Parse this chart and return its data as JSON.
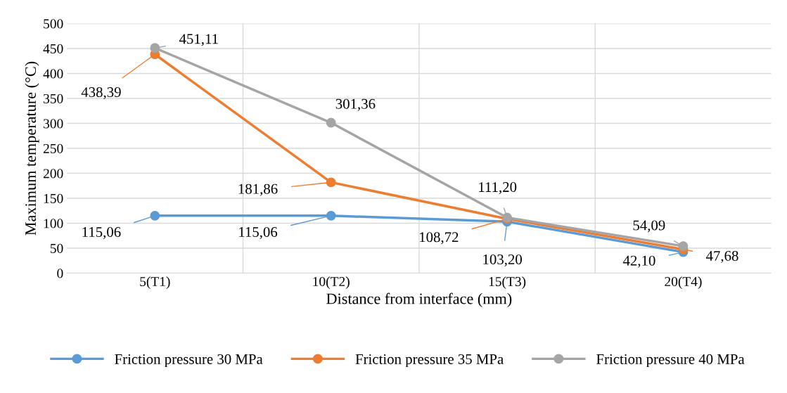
{
  "chart_data": {
    "type": "line",
    "xlabel": "Distance from interface (mm)",
    "ylabel": "Maximum temperature (°C)",
    "categories": [
      "5(T1)",
      "10(T2)",
      "15(T3)",
      "20(T4)"
    ],
    "series": [
      {
        "name": "Friction pressure 30 MPa",
        "color": "#5b9bd5",
        "values": [
          115.06,
          115.06,
          103.2,
          42.1
        ],
        "value_labels": [
          "115,06",
          "115,06",
          "103,20",
          "42,10"
        ]
      },
      {
        "name": "Friction pressure 35 MPa",
        "color": "#ed7d31",
        "values": [
          438.39,
          181.86,
          108.72,
          47.68
        ],
        "value_labels": [
          "438,39",
          "181,86",
          "108,72",
          "47,68"
        ]
      },
      {
        "name": "Friction pressure 40 MPa",
        "color": "#a5a5a5",
        "values": [
          451.11,
          301.36,
          111.2,
          54.09
        ],
        "value_labels": [
          "451,11",
          "301,36",
          "111,20",
          "54,09"
        ]
      }
    ],
    "ylim": [
      0,
      500
    ],
    "yticks": [
      0,
      50,
      100,
      150,
      200,
      250,
      300,
      350,
      400,
      450,
      500
    ],
    "grid": true,
    "legend": "bottom",
    "marker": "circle",
    "line_style": "solid"
  }
}
